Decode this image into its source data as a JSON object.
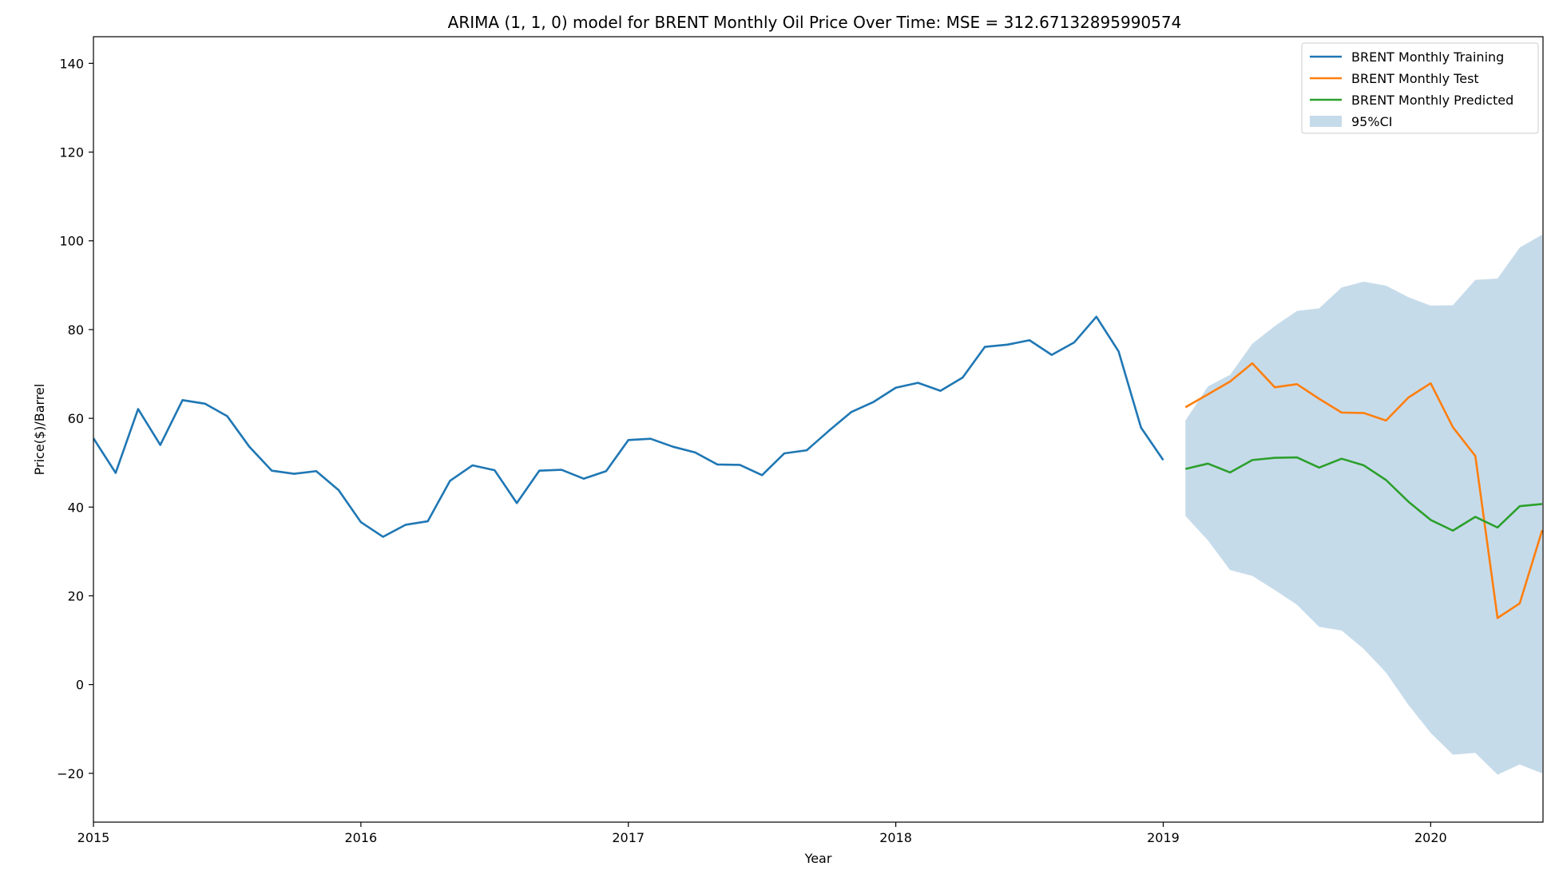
{
  "chart_data": {
    "type": "line",
    "title": "ARIMA  (1, 1, 0) model for BRENT Monthly Oil Price Over Time: MSE = 312.67132895990574",
    "xlabel": "Year",
    "ylabel": "Price($)/Barrel",
    "xlim": [
      2015.0,
      2020.42
    ],
    "ylim": [
      -31,
      146
    ],
    "x_ticks": [
      {
        "value": 2015,
        "label": "2015"
      },
      {
        "value": 2016,
        "label": "2016"
      },
      {
        "value": 2017,
        "label": "2017"
      },
      {
        "value": 2018,
        "label": "2018"
      },
      {
        "value": 2019,
        "label": "2019"
      },
      {
        "value": 2020,
        "label": "2020"
      }
    ],
    "y_ticks": [
      {
        "value": -20,
        "label": "−20"
      },
      {
        "value": 0,
        "label": "0"
      },
      {
        "value": 20,
        "label": "20"
      },
      {
        "value": 40,
        "label": "40"
      },
      {
        "value": 60,
        "label": "60"
      },
      {
        "value": 80,
        "label": "80"
      },
      {
        "value": 100,
        "label": "100"
      },
      {
        "value": 120,
        "label": "120"
      },
      {
        "value": 140,
        "label": "140"
      }
    ],
    "grid": false,
    "legend": {
      "placement": "top-right",
      "entries": [
        {
          "label": "BRENT Monthly Training",
          "kind": "line",
          "color": "#1f77b4"
        },
        {
          "label": "BRENT Monthly Test",
          "kind": "line",
          "color": "#ff7f0e"
        },
        {
          "label": "BRENT Monthly Predicted",
          "kind": "line",
          "color": "#2ca02c"
        },
        {
          "label": "95%CI",
          "kind": "patch",
          "color": "#c6dbea"
        }
      ]
    },
    "series": [
      {
        "name": "BRENT Monthly Training",
        "color": "#1f77b4",
        "x": [
          2015.0,
          2015.083,
          2015.167,
          2015.25,
          2015.333,
          2015.417,
          2015.5,
          2015.583,
          2015.667,
          2015.75,
          2015.833,
          2015.917,
          2016.0,
          2016.083,
          2016.167,
          2016.25,
          2016.333,
          2016.417,
          2016.5,
          2016.583,
          2016.667,
          2016.75,
          2016.833,
          2016.917,
          2017.0,
          2017.083,
          2017.167,
          2017.25,
          2017.333,
          2017.417,
          2017.5,
          2017.583,
          2017.667,
          2017.75,
          2017.833,
          2017.917,
          2018.0,
          2018.083,
          2018.167,
          2018.25,
          2018.333,
          2018.417,
          2018.5,
          2018.583,
          2018.667,
          2018.75,
          2018.833,
          2018.917,
          2019.0
        ],
        "values": [
          55.5,
          47.7,
          62.1,
          54.0,
          64.1,
          63.3,
          60.5,
          53.6,
          48.2,
          47.5,
          48.1,
          43.8,
          36.6,
          33.3,
          36.0,
          36.8,
          45.9,
          49.4,
          48.3,
          40.9,
          48.2,
          48.4,
          46.4,
          48.1,
          55.1,
          55.4,
          53.6,
          52.3,
          49.6,
          49.5,
          47.2,
          52.1,
          52.8,
          57.2,
          61.4,
          63.7,
          66.9,
          68.0,
          66.2,
          69.2,
          76.1,
          76.6,
          77.6,
          74.3,
          77.1,
          82.9,
          75.1,
          57.9,
          50.6
        ]
      },
      {
        "name": "BRENT Monthly Test",
        "color": "#ff7f0e",
        "x": [
          2019.083,
          2019.167,
          2019.25,
          2019.333,
          2019.417,
          2019.5,
          2019.583,
          2019.667,
          2019.75,
          2019.833,
          2019.917,
          2020.0,
          2020.083,
          2020.167,
          2020.25,
          2020.333,
          2020.417
        ],
        "values": [
          62.5,
          65.4,
          68.3,
          72.4,
          67.0,
          67.7,
          64.4,
          61.3,
          61.2,
          59.5,
          64.7,
          67.9,
          58.0,
          51.5,
          15.0,
          18.3,
          34.8
        ]
      },
      {
        "name": "BRENT Monthly Predicted",
        "color": "#2ca02c",
        "x": [
          2019.083,
          2019.167,
          2019.25,
          2019.333,
          2019.417,
          2019.5,
          2019.583,
          2019.667,
          2019.75,
          2019.833,
          2019.917,
          2020.0,
          2020.083,
          2020.167,
          2020.25,
          2020.333,
          2020.417
        ],
        "values": [
          48.6,
          49.8,
          47.8,
          50.6,
          51.1,
          51.2,
          48.9,
          50.9,
          49.4,
          46.1,
          41.2,
          37.1,
          34.7,
          37.8,
          35.4,
          40.2,
          40.7
        ]
      }
    ],
    "confidence_band": {
      "name": "95%CI",
      "color": "#c6dbea",
      "x": [
        2019.083,
        2019.167,
        2019.25,
        2019.333,
        2019.417,
        2019.5,
        2019.583,
        2019.667,
        2019.75,
        2019.833,
        2019.917,
        2020.0,
        2020.083,
        2020.167,
        2020.25,
        2020.333,
        2020.417
      ],
      "lower": [
        38.0,
        32.5,
        25.8,
        24.5,
        21.3,
        18.0,
        13.0,
        12.2,
        8.0,
        2.7,
        -4.6,
        -10.9,
        -15.8,
        -15.4,
        -20.3,
        -18.0,
        -20.0
      ],
      "upper": [
        59.5,
        67.2,
        69.8,
        76.8,
        80.8,
        84.2,
        84.8,
        89.5,
        90.8,
        89.9,
        87.3,
        85.4,
        85.5,
        91.2,
        91.5,
        98.5,
        101.4
      ]
    }
  }
}
